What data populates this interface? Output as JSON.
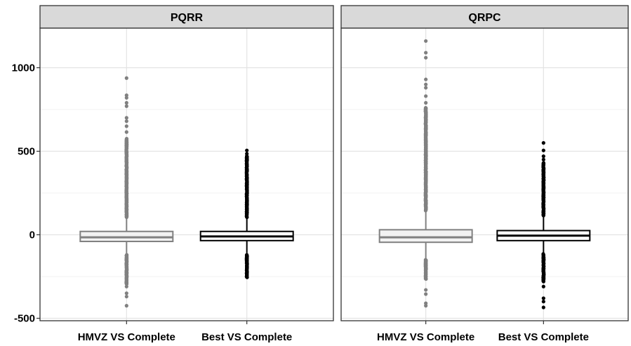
{
  "chart_data": {
    "type": "boxplot",
    "title": "",
    "xlabel": "",
    "ylabel": "",
    "ylim": [
      -520,
      1250
    ],
    "y_ticks": [
      -500,
      0,
      500,
      1000
    ],
    "y_tick_labels": [
      "-500",
      "0",
      "500",
      "1000"
    ],
    "grid": true,
    "categories": [
      "HMVZ VS Complete",
      "Best VS Complete"
    ],
    "panels": [
      {
        "name": "PQRR",
        "boxes": [
          {
            "category": "HMVZ VS Complete",
            "color": "#808080",
            "fill": "#f2f2f2",
            "q1": -40,
            "median": -15,
            "q3": 20,
            "whisker_low": -115,
            "whisker_high": 100,
            "outliers_high_range": [
              105,
              575
            ],
            "outliers_low_range": [
              -295,
              -120
            ],
            "outliers_extreme": [
              615,
              650,
              680,
              700,
              770,
              790,
              820,
              835,
              938,
              -310,
              -350,
              -370,
              -425
            ]
          },
          {
            "category": "Best VS Complete",
            "color": "#000000",
            "fill": "#ffffff",
            "q1": -35,
            "median": -10,
            "q3": 20,
            "whisker_low": -110,
            "whisker_high": 100,
            "outliers_high_range": [
              105,
              470
            ],
            "outliers_low_range": [
              -255,
              -120
            ],
            "outliers_extreme": [
              485,
              505
            ]
          }
        ]
      },
      {
        "name": "QRPC",
        "boxes": [
          {
            "category": "HMVZ VS Complete",
            "color": "#808080",
            "fill": "#f2f2f2",
            "q1": -45,
            "median": -15,
            "q3": 30,
            "whisker_low": -145,
            "whisker_high": 140,
            "outliers_high_range": [
              145,
              760
            ],
            "outliers_low_range": [
              -265,
              -150
            ],
            "outliers_extreme": [
              790,
              830,
              880,
              900,
              930,
              1060,
              1090,
              1160,
              -330,
              -355,
              -410,
              -425
            ]
          },
          {
            "category": "Best VS Complete",
            "color": "#000000",
            "fill": "#ffffff",
            "q1": -35,
            "median": -5,
            "q3": 25,
            "whisker_low": -110,
            "whisker_high": 110,
            "outliers_high_range": [
              115,
              430
            ],
            "outliers_low_range": [
              -280,
              -115
            ],
            "outliers_extreme": [
              450,
              470,
              505,
              550,
              -310,
              -380,
              -400,
              -435
            ]
          }
        ]
      }
    ]
  }
}
